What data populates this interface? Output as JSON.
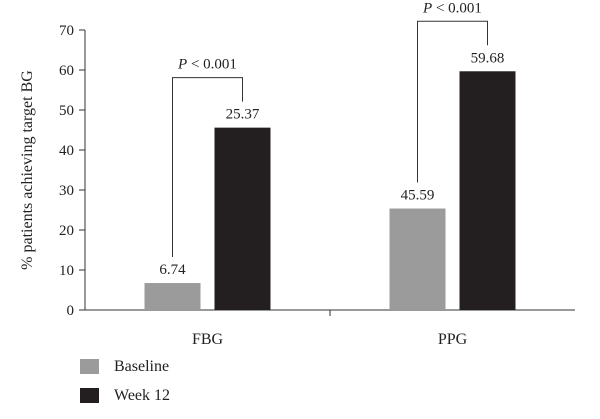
{
  "chart_data": {
    "type": "bar",
    "categories": [
      "FBG",
      "PPG"
    ],
    "series": [
      {
        "name": "Baseline",
        "values": [
          6.74,
          25.37
        ]
      },
      {
        "name": "Week 12",
        "values": [
          45.59,
          59.68
        ]
      }
    ],
    "value_labels": [
      [
        "6.74",
        "25.37"
      ],
      [
        "45.59",
        "59.68"
      ]
    ],
    "ylabel": "% patients achieving target BG",
    "xlabel": "",
    "ylim": [
      0,
      70
    ],
    "yticks": [
      0,
      10,
      20,
      30,
      40,
      50,
      60,
      70
    ],
    "annotations": [
      {
        "category": "FBG",
        "text": "P < 0.001"
      },
      {
        "category": "PPG",
        "text": "P < 0.001"
      }
    ],
    "colors": {
      "Baseline": "#9b9b9b",
      "Week 12": "#231f20"
    },
    "legend_position": "bottom-left",
    "grid": false
  }
}
